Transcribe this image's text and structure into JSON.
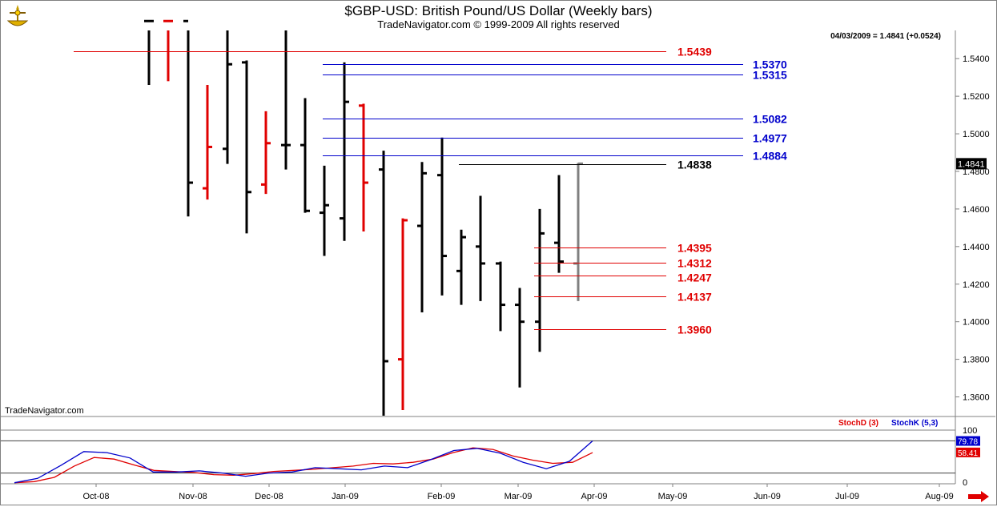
{
  "title": "$GBP-USD:  British Pound/US Dollar  (Weekly bars)",
  "subtitle": "TradeNavigator.com © 1999-2009 All rights reserved",
  "last_quote": "04/03/2009 = 1.4841 (+0.0524)",
  "watermark": "TradeNavigator.com",
  "colors": {
    "up_bar": "#000000",
    "down_bar": "#e00000",
    "resistance": "#0000cc",
    "support": "#e00000",
    "pivot": "#000000",
    "current_bar": "#808080",
    "stochD": "#e00000",
    "stochK": "#0000cc"
  },
  "icons": {
    "logo": "sextant-logo-icon",
    "scroll": "right-arrow-icon"
  },
  "chart_data": [
    {
      "type": "ohlc",
      "ylim": [
        1.35,
        1.555
      ],
      "yticks": [
        "1.5400",
        "1.5200",
        "1.5000",
        "1.4800",
        "1.4600",
        "1.4400",
        "1.4200",
        "1.4000",
        "1.3800",
        "1.3600"
      ],
      "current_value_label": "1.4841",
      "x_labels": [
        "Oct-08",
        "Nov-08",
        "Dec-08",
        "Jan-09",
        "Feb-09",
        "Mar-09",
        "Apr-09",
        "May-09",
        "Jun-09",
        "Jul-09",
        "Aug-09"
      ],
      "bars": [
        {
          "h": 1.56,
          "l": 1.526,
          "o": 1.56,
          "c": 1.56,
          "color": "black"
        },
        {
          "h": 1.56,
          "l": 1.528,
          "o": 1.56,
          "c": 1.56,
          "color": "red"
        },
        {
          "h": 1.56,
          "l": 1.456,
          "o": 1.56,
          "c": 1.474,
          "color": "black"
        },
        {
          "h": 1.526,
          "l": 1.465,
          "o": 1.471,
          "c": 1.493,
          "color": "red"
        },
        {
          "h": 1.56,
          "l": 1.484,
          "o": 1.492,
          "c": 1.537,
          "color": "black"
        },
        {
          "h": 1.539,
          "l": 1.447,
          "o": 1.538,
          "c": 1.469,
          "color": "black"
        },
        {
          "h": 1.512,
          "l": 1.468,
          "o": 1.473,
          "c": 1.495,
          "color": "red"
        },
        {
          "h": 1.56,
          "l": 1.481,
          "o": 1.494,
          "c": 1.494,
          "color": "black"
        },
        {
          "h": 1.519,
          "l": 1.458,
          "o": 1.494,
          "c": 1.459,
          "color": "black"
        },
        {
          "h": 1.483,
          "l": 1.435,
          "o": 1.458,
          "c": 1.462,
          "color": "black"
        },
        {
          "h": 1.538,
          "l": 1.443,
          "o": 1.455,
          "c": 1.517,
          "color": "black"
        },
        {
          "h": 1.516,
          "l": 1.448,
          "o": 1.515,
          "c": 1.474,
          "color": "red"
        },
        {
          "h": 1.491,
          "l": 1.35,
          "o": 1.481,
          "c": 1.379,
          "color": "black"
        },
        {
          "h": 1.455,
          "l": 1.353,
          "o": 1.38,
          "c": 1.454,
          "color": "red"
        },
        {
          "h": 1.485,
          "l": 1.405,
          "o": 1.451,
          "c": 1.479,
          "color": "black"
        },
        {
          "h": 1.498,
          "l": 1.414,
          "o": 1.478,
          "c": 1.435,
          "color": "black"
        },
        {
          "h": 1.449,
          "l": 1.409,
          "o": 1.427,
          "c": 1.445,
          "color": "black"
        },
        {
          "h": 1.467,
          "l": 1.411,
          "o": 1.44,
          "c": 1.431,
          "color": "black"
        },
        {
          "h": 1.432,
          "l": 1.395,
          "o": 1.431,
          "c": 1.409,
          "color": "black"
        },
        {
          "h": 1.418,
          "l": 1.365,
          "o": 1.409,
          "c": 1.4,
          "color": "black"
        },
        {
          "h": 1.46,
          "l": 1.384,
          "o": 1.4,
          "c": 1.447,
          "color": "black"
        },
        {
          "h": 1.478,
          "l": 1.426,
          "o": 1.442,
          "c": 1.432,
          "color": "black"
        },
        {
          "h": 1.4845,
          "l": 1.411,
          "o": 1.431,
          "c": 1.4841,
          "color": "gray"
        }
      ],
      "levels": [
        {
          "label": "1.5439",
          "value": 1.5439,
          "role": "support"
        },
        {
          "label": "1.5370",
          "value": 1.537,
          "role": "resistance"
        },
        {
          "label": "1.5315",
          "value": 1.5315,
          "role": "resistance"
        },
        {
          "label": "1.5082",
          "value": 1.5082,
          "role": "resistance"
        },
        {
          "label": "1.4977",
          "value": 1.4977,
          "role": "resistance"
        },
        {
          "label": "1.4884",
          "value": 1.4884,
          "role": "resistance"
        },
        {
          "label": "1.4838",
          "value": 1.4838,
          "role": "pivot"
        },
        {
          "label": "1.4395",
          "value": 1.4395,
          "role": "support"
        },
        {
          "label": "1.4312",
          "value": 1.4312,
          "role": "support"
        },
        {
          "label": "1.4247",
          "value": 1.4247,
          "role": "support"
        },
        {
          "label": "1.4137",
          "value": 1.4137,
          "role": "support"
        },
        {
          "label": "1.3960",
          "value": 1.396,
          "role": "support"
        }
      ]
    },
    {
      "type": "line",
      "ylim": [
        0,
        100
      ],
      "yticks": [
        "100",
        "0"
      ],
      "stochD_label": "StochD (3)",
      "stochK_label": "StochK (5,3)",
      "stochD_value": "58.41",
      "stochK_value": "79.78",
      "series": [
        {
          "name": "StochD (3)",
          "color": "#e00000",
          "values": [
            2,
            4,
            12,
            33,
            49,
            46,
            35,
            25,
            23,
            21,
            17,
            16,
            19,
            23,
            25,
            27,
            30,
            33,
            38,
            37,
            40,
            46,
            58,
            67,
            64,
            52,
            44,
            38,
            40,
            58
          ]
        },
        {
          "name": "StochK (5,3)",
          "color": "#0000cc",
          "values": [
            2,
            10,
            34,
            60,
            58,
            48,
            22,
            22,
            24,
            20,
            14,
            20,
            22,
            30,
            28,
            26,
            33,
            30,
            45,
            62,
            66,
            57,
            40,
            28,
            42,
            79.78
          ]
        }
      ]
    }
  ]
}
